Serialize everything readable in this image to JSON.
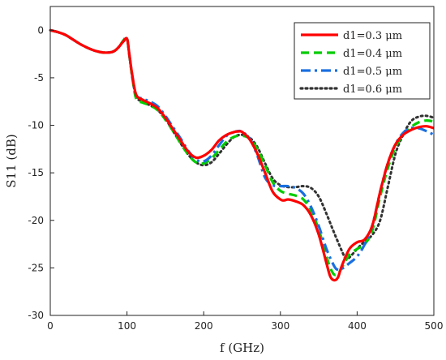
{
  "chart_data": {
    "type": "line",
    "xlabel": "f (GHz)",
    "ylabel": "S11 (dB)",
    "xlim": [
      0,
      500
    ],
    "ylim": [
      -30,
      2.5
    ],
    "xticks": [
      0,
      100,
      200,
      300,
      400,
      500
    ],
    "yticks": [
      0,
      -5,
      -10,
      -15,
      -20,
      -25,
      -30
    ],
    "grid": false,
    "legend_position": "top-right",
    "series": [
      {
        "name": "d1=0.3 μm",
        "color": "#ff0000",
        "dash": "solid",
        "x": [
          0,
          10,
          20,
          30,
          40,
          50,
          60,
          70,
          80,
          85,
          90,
          95,
          100,
          103,
          107,
          112,
          120,
          130,
          140,
          150,
          160,
          170,
          180,
          190,
          200,
          210,
          220,
          230,
          240,
          245,
          250,
          260,
          270,
          280,
          290,
          300,
          305,
          310,
          320,
          330,
          340,
          350,
          360,
          365,
          370,
          375,
          380,
          390,
          400,
          410,
          420,
          430,
          440,
          450,
          460,
          470,
          480,
          490,
          500
        ],
        "y": [
          0,
          -0.2,
          -0.5,
          -1.0,
          -1.5,
          -1.9,
          -2.2,
          -2.35,
          -2.3,
          -2.1,
          -1.7,
          -1.2,
          -0.9,
          -2.5,
          -4.8,
          -6.8,
          -7.3,
          -7.7,
          -8.2,
          -9.2,
          -10.4,
          -11.6,
          -12.8,
          -13.4,
          -13.2,
          -12.6,
          -11.6,
          -11.0,
          -10.7,
          -10.65,
          -10.7,
          -11.5,
          -13.0,
          -15.0,
          -17.0,
          -17.8,
          -17.9,
          -17.8,
          -18.0,
          -18.4,
          -19.5,
          -21.5,
          -24.5,
          -25.9,
          -26.3,
          -26.0,
          -24.8,
          -23.0,
          -22.3,
          -22.0,
          -20.5,
          -17.0,
          -14.0,
          -12.0,
          -11.0,
          -10.5,
          -10.2,
          -10.1,
          -10.3
        ]
      },
      {
        "name": "d1=0.4 μm",
        "color": "#00cc00",
        "dash": "10,6",
        "x": [
          0,
          10,
          20,
          30,
          40,
          50,
          60,
          70,
          80,
          85,
          90,
          95,
          100,
          103,
          107,
          112,
          120,
          130,
          140,
          150,
          160,
          170,
          180,
          190,
          200,
          210,
          220,
          230,
          240,
          250,
          260,
          270,
          280,
          290,
          300,
          310,
          320,
          330,
          340,
          350,
          360,
          365,
          370,
          375,
          380,
          390,
          400,
          410,
          420,
          430,
          440,
          450,
          460,
          470,
          480,
          490,
          500
        ],
        "y": [
          0,
          -0.2,
          -0.5,
          -1.0,
          -1.5,
          -1.9,
          -2.2,
          -2.35,
          -2.3,
          -2.1,
          -1.7,
          -1.1,
          -0.8,
          -2.6,
          -5.0,
          -7.2,
          -7.6,
          -7.9,
          -8.4,
          -9.4,
          -10.6,
          -11.9,
          -13.1,
          -13.9,
          -14.0,
          -13.5,
          -12.6,
          -11.7,
          -11.2,
          -11.1,
          -11.4,
          -12.5,
          -14.2,
          -16.0,
          -16.9,
          -17.2,
          -17.4,
          -17.8,
          -19.0,
          -21.0,
          -23.8,
          -25.0,
          -25.7,
          -25.6,
          -25.0,
          -23.6,
          -23.0,
          -22.5,
          -21.0,
          -17.5,
          -14.5,
          -12.3,
          -11.0,
          -10.2,
          -9.7,
          -9.5,
          -9.6
        ]
      },
      {
        "name": "d1=0.5 μm",
        "color": "#1a6fe0",
        "dash": "12,5,3,5",
        "x": [
          0,
          10,
          20,
          30,
          40,
          50,
          60,
          70,
          80,
          85,
          90,
          95,
          100,
          103,
          107,
          112,
          120,
          130,
          140,
          150,
          160,
          170,
          180,
          190,
          200,
          210,
          220,
          230,
          240,
          245,
          250,
          260,
          270,
          280,
          290,
          300,
          310,
          320,
          330,
          340,
          350,
          360,
          370,
          375,
          380,
          390,
          400,
          410,
          420,
          430,
          440,
          450,
          460,
          470,
          480,
          490,
          500
        ],
        "y": [
          0,
          -0.2,
          -0.5,
          -1.0,
          -1.5,
          -1.9,
          -2.2,
          -2.35,
          -2.3,
          -2.1,
          -1.7,
          -1.2,
          -0.9,
          -2.5,
          -4.8,
          -6.8,
          -7.2,
          -7.5,
          -8.0,
          -9.0,
          -10.2,
          -11.4,
          -12.7,
          -13.6,
          -13.8,
          -13.2,
          -12.1,
          -11.1,
          -10.7,
          -10.6,
          -10.7,
          -11.4,
          -13.2,
          -15.5,
          -16.3,
          -16.4,
          -16.4,
          -16.6,
          -17.2,
          -18.6,
          -20.6,
          -23.0,
          -24.8,
          -25.2,
          -25.1,
          -24.5,
          -23.8,
          -22.5,
          -20.5,
          -17.0,
          -14.0,
          -12.0,
          -10.8,
          -10.3,
          -10.3,
          -10.6,
          -11.0
        ]
      },
      {
        "name": "d1=0.6 μm",
        "color": "#333333",
        "dash": "2,4",
        "x": [
          0,
          10,
          20,
          30,
          40,
          50,
          60,
          70,
          80,
          85,
          90,
          95,
          100,
          103,
          107,
          112,
          120,
          130,
          140,
          150,
          160,
          170,
          180,
          190,
          200,
          210,
          220,
          230,
          240,
          250,
          260,
          270,
          280,
          290,
          300,
          310,
          320,
          330,
          340,
          350,
          360,
          370,
          380,
          385,
          390,
          400,
          410,
          420,
          430,
          440,
          450,
          460,
          470,
          480,
          490,
          500
        ],
        "y": [
          0,
          -0.2,
          -0.5,
          -1.0,
          -1.5,
          -1.9,
          -2.2,
          -2.35,
          -2.3,
          -2.1,
          -1.7,
          -1.2,
          -0.9,
          -2.6,
          -5.0,
          -7.0,
          -7.5,
          -7.9,
          -8.4,
          -9.3,
          -10.6,
          -11.9,
          -13.1,
          -13.9,
          -14.2,
          -13.9,
          -13.0,
          -12.0,
          -11.2,
          -11.0,
          -11.3,
          -12.3,
          -14.0,
          -15.6,
          -16.3,
          -16.5,
          -16.5,
          -16.4,
          -16.6,
          -17.5,
          -19.3,
          -21.3,
          -23.2,
          -24.0,
          -23.9,
          -23.0,
          -22.2,
          -21.5,
          -20.0,
          -16.5,
          -13.0,
          -11.0,
          -9.6,
          -9.1,
          -9.0,
          -9.2
        ]
      }
    ]
  }
}
